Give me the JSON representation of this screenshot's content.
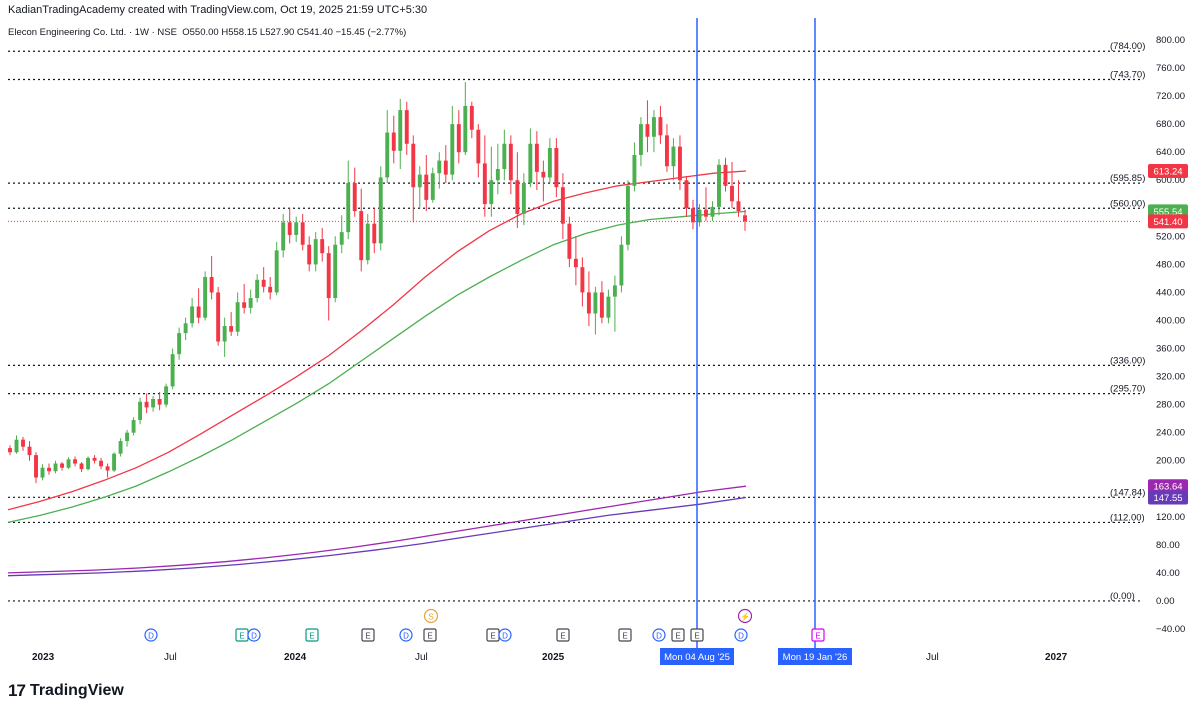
{
  "attribution": "KadianTradingAcademy created with TradingView.com, Oct 19, 2025 21:59 UTC+5:30",
  "legend": {
    "symbol": "Elecon Engineering Co. Ltd. · 1W · NSE",
    "open_label": "O",
    "open": "550.00",
    "high_label": "H",
    "high": "558.15",
    "low_label": "L",
    "low": "527.90",
    "close_label": "C",
    "close": "541.40",
    "change": "−15.45 (−2.77%)"
  },
  "brand": {
    "logo_mark": "17",
    "name": "TradingView"
  },
  "colors": {
    "up": "#4caf50",
    "down": "#f23645",
    "ema_red": "#f23645",
    "ema_green": "#4caf50",
    "ma_purple1": "#9c27b0",
    "ma_purple2": "#673ab7",
    "vline": "#2962ff",
    "dotted": "#131722"
  },
  "chart_data": {
    "type": "candlestick",
    "interval": "1W",
    "price_axis": {
      "min": -40,
      "max": 820,
      "ticks": [
        "800.00",
        "760.00",
        "720.00",
        "680.00",
        "640.00",
        "600.00",
        "560.00",
        "520.00",
        "480.00",
        "440.00",
        "400.00",
        "360.00",
        "320.00",
        "280.00",
        "240.00",
        "200.00",
        "160.00",
        "120.00",
        "80.00",
        "40.00",
        "0.00",
        "−40.00"
      ]
    },
    "time_axis": {
      "labels": [
        "2023",
        "Jul",
        "2024",
        "Jul",
        "2025",
        "Jul",
        "2027"
      ],
      "highlighted_labels": [
        "Mon 04 Aug '25",
        "Mon 19 Jan '26"
      ]
    },
    "horizontal_levels": [
      {
        "label": "(784.00)",
        "value": 784.0
      },
      {
        "label": "(743.70)",
        "value": 743.7
      },
      {
        "label": "(595.85)",
        "value": 595.85
      },
      {
        "label": "(560.00)",
        "value": 560.0
      },
      {
        "label": "(336.00)",
        "value": 336.0
      },
      {
        "label": "(295.70)",
        "value": 295.7
      },
      {
        "label": "(147.84)",
        "value": 147.84
      },
      {
        "label": "(112.00)",
        "value": 112.0
      },
      {
        "label": "(0.00)",
        "value": 0.0
      }
    ],
    "last_price": {
      "label": "541.40",
      "value": 541.4
    },
    "price_tags": [
      {
        "label": "613.24",
        "value": 613.24,
        "color": "#f23645"
      },
      {
        "label": "555.54",
        "value": 555.54,
        "color": "#4caf50"
      },
      {
        "label": "541.40",
        "value": 541.4,
        "color": "#f23645"
      },
      {
        "label": "163.64",
        "value": 163.64,
        "color": "#9c27b0"
      },
      {
        "label": "147.55",
        "value": 147.55,
        "color": "#673ab7"
      }
    ],
    "vertical_markers": [
      "Mon 04 Aug '25",
      "Mon 19 Jan '26"
    ],
    "moving_averages": [
      {
        "color": "#f23645",
        "values": [
          130,
          142,
          156,
          172,
          190,
          212,
          238,
          265,
          292,
          320,
          350,
          385,
          422,
          462,
          498,
          528,
          552,
          570,
          582,
          592,
          598,
          604,
          610,
          613.24
        ]
      },
      {
        "color": "#4caf50",
        "values": [
          112,
          122,
          134,
          148,
          164,
          184,
          206,
          230,
          256,
          282,
          310,
          342,
          374,
          406,
          436,
          462,
          486,
          508,
          524,
          536,
          544,
          548,
          552,
          555.54
        ]
      },
      {
        "color": "#9c27b0",
        "values": [
          40,
          42,
          44,
          47,
          51,
          56,
          62,
          69,
          77,
          86,
          96,
          106,
          116,
          126,
          136,
          146,
          156,
          163.64
        ]
      },
      {
        "color": "#673ab7",
        "values": [
          36,
          38,
          40,
          43,
          47,
          52,
          58,
          65,
          73,
          82,
          92,
          102,
          112,
          122,
          130,
          138,
          147.55
        ]
      }
    ],
    "candles": [
      [
        218,
        222,
        208,
        212
      ],
      [
        212,
        236,
        210,
        230
      ],
      [
        230,
        234,
        214,
        220
      ],
      [
        220,
        228,
        200,
        208
      ],
      [
        208,
        212,
        168,
        176
      ],
      [
        176,
        195,
        172,
        190
      ],
      [
        190,
        196,
        180,
        185
      ],
      [
        185,
        200,
        182,
        196
      ],
      [
        196,
        198,
        186,
        190
      ],
      [
        190,
        205,
        188,
        202
      ],
      [
        202,
        206,
        192,
        196
      ],
      [
        196,
        198,
        184,
        188
      ],
      [
        188,
        206,
        186,
        204
      ],
      [
        204,
        208,
        196,
        200
      ],
      [
        200,
        204,
        188,
        192
      ],
      [
        192,
        196,
        176,
        186
      ],
      [
        186,
        212,
        184,
        210
      ],
      [
        210,
        232,
        206,
        228
      ],
      [
        228,
        244,
        220,
        240
      ],
      [
        240,
        262,
        236,
        258
      ],
      [
        258,
        290,
        252,
        284
      ],
      [
        284,
        296,
        268,
        276
      ],
      [
        276,
        292,
        270,
        288
      ],
      [
        288,
        298,
        272,
        280
      ],
      [
        280,
        310,
        276,
        306
      ],
      [
        306,
        360,
        302,
        352
      ],
      [
        352,
        390,
        344,
        382
      ],
      [
        382,
        404,
        372,
        396
      ],
      [
        396,
        432,
        390,
        420
      ],
      [
        420,
        446,
        396,
        404
      ],
      [
        404,
        470,
        400,
        462
      ],
      [
        462,
        492,
        430,
        440
      ],
      [
        440,
        448,
        364,
        370
      ],
      [
        370,
        404,
        348,
        392
      ],
      [
        392,
        412,
        378,
        384
      ],
      [
        384,
        440,
        378,
        426
      ],
      [
        426,
        452,
        410,
        418
      ],
      [
        418,
        444,
        410,
        432
      ],
      [
        432,
        466,
        426,
        458
      ],
      [
        458,
        476,
        440,
        448
      ],
      [
        448,
        462,
        430,
        440
      ],
      [
        440,
        512,
        436,
        500
      ],
      [
        500,
        552,
        490,
        540
      ],
      [
        540,
        560,
        510,
        522
      ],
      [
        522,
        548,
        512,
        540
      ],
      [
        540,
        552,
        500,
        508
      ],
      [
        508,
        520,
        470,
        480
      ],
      [
        480,
        526,
        470,
        516
      ],
      [
        516,
        532,
        484,
        496
      ],
      [
        496,
        506,
        400,
        432
      ],
      [
        432,
        520,
        426,
        508
      ],
      [
        508,
        550,
        496,
        526
      ],
      [
        526,
        628,
        516,
        596
      ],
      [
        596,
        618,
        548,
        556
      ],
      [
        556,
        588,
        470,
        486
      ],
      [
        486,
        552,
        480,
        538
      ],
      [
        538,
        560,
        496,
        510
      ],
      [
        510,
        620,
        500,
        604
      ],
      [
        604,
        700,
        596,
        668
      ],
      [
        668,
        692,
        624,
        642
      ],
      [
        642,
        716,
        616,
        700
      ],
      [
        700,
        712,
        636,
        652
      ],
      [
        652,
        664,
        540,
        590
      ],
      [
        590,
        620,
        560,
        608
      ],
      [
        608,
        636,
        556,
        572
      ],
      [
        572,
        618,
        568,
        610
      ],
      [
        610,
        640,
        588,
        628
      ],
      [
        628,
        650,
        596,
        608
      ],
      [
        608,
        706,
        600,
        680
      ],
      [
        680,
        700,
        624,
        640
      ],
      [
        640,
        740,
        636,
        706
      ],
      [
        706,
        712,
        660,
        672
      ],
      [
        672,
        680,
        604,
        624
      ],
      [
        624,
        664,
        548,
        566
      ],
      [
        566,
        648,
        548,
        600
      ],
      [
        600,
        652,
        580,
        616
      ],
      [
        616,
        672,
        600,
        652
      ],
      [
        652,
        664,
        580,
        600
      ],
      [
        600,
        640,
        532,
        552
      ],
      [
        552,
        610,
        536,
        596
      ],
      [
        596,
        674,
        590,
        652
      ],
      [
        652,
        670,
        586,
        612
      ],
      [
        612,
        628,
        570,
        604
      ],
      [
        604,
        660,
        596,
        646
      ],
      [
        646,
        660,
        576,
        590
      ],
      [
        590,
        610,
        516,
        538
      ],
      [
        538,
        548,
        476,
        488
      ],
      [
        488,
        520,
        450,
        476
      ],
      [
        476,
        490,
        420,
        440
      ],
      [
        440,
        470,
        392,
        410
      ],
      [
        410,
        448,
        380,
        440
      ],
      [
        440,
        456,
        396,
        404
      ],
      [
        404,
        444,
        396,
        434
      ],
      [
        434,
        464,
        384,
        450
      ],
      [
        450,
        520,
        440,
        508
      ],
      [
        508,
        600,
        500,
        592
      ],
      [
        592,
        654,
        584,
        636
      ],
      [
        636,
        690,
        620,
        680
      ],
      [
        680,
        714,
        640,
        662
      ],
      [
        662,
        700,
        640,
        690
      ],
      [
        690,
        706,
        652,
        664
      ],
      [
        664,
        680,
        612,
        620
      ],
      [
        620,
        660,
        600,
        648
      ],
      [
        648,
        664,
        586,
        600
      ],
      [
        600,
        606,
        548,
        560
      ],
      [
        560,
        572,
        530,
        540
      ],
      [
        540,
        566,
        534,
        558
      ],
      [
        558,
        590,
        542,
        548
      ],
      [
        548,
        570,
        542,
        562
      ],
      [
        562,
        630,
        550,
        622
      ],
      [
        622,
        632,
        584,
        592
      ],
      [
        592,
        626,
        560,
        570
      ],
      [
        570,
        600,
        548,
        556
      ],
      [
        550,
        558.15,
        527.9,
        541.4
      ]
    ],
    "events_top": [
      {
        "type": "S",
        "color": "#e8a33d"
      },
      {
        "type": "⚡",
        "color": "#9c27b0"
      }
    ],
    "events": [
      {
        "type": "D",
        "color": "#2962ff"
      },
      {
        "type": "E",
        "color": "#089981"
      },
      {
        "type": "D",
        "color": "#2962ff"
      },
      {
        "type": "E",
        "color": "#089981"
      },
      {
        "type": "E",
        "color": "#434651"
      },
      {
        "type": "D",
        "color": "#2962ff"
      },
      {
        "type": "E",
        "color": "#434651"
      },
      {
        "type": "E",
        "color": "#434651"
      },
      {
        "type": "D",
        "color": "#2962ff"
      },
      {
        "type": "E",
        "color": "#434651"
      },
      {
        "type": "E",
        "color": "#434651"
      },
      {
        "type": "D",
        "color": "#2962ff"
      },
      {
        "type": "E",
        "color": "#434651"
      },
      {
        "type": "E",
        "color": "#434651"
      },
      {
        "type": "D",
        "color": "#2962ff"
      },
      {
        "type": "E",
        "color": "#d500f9"
      }
    ]
  }
}
